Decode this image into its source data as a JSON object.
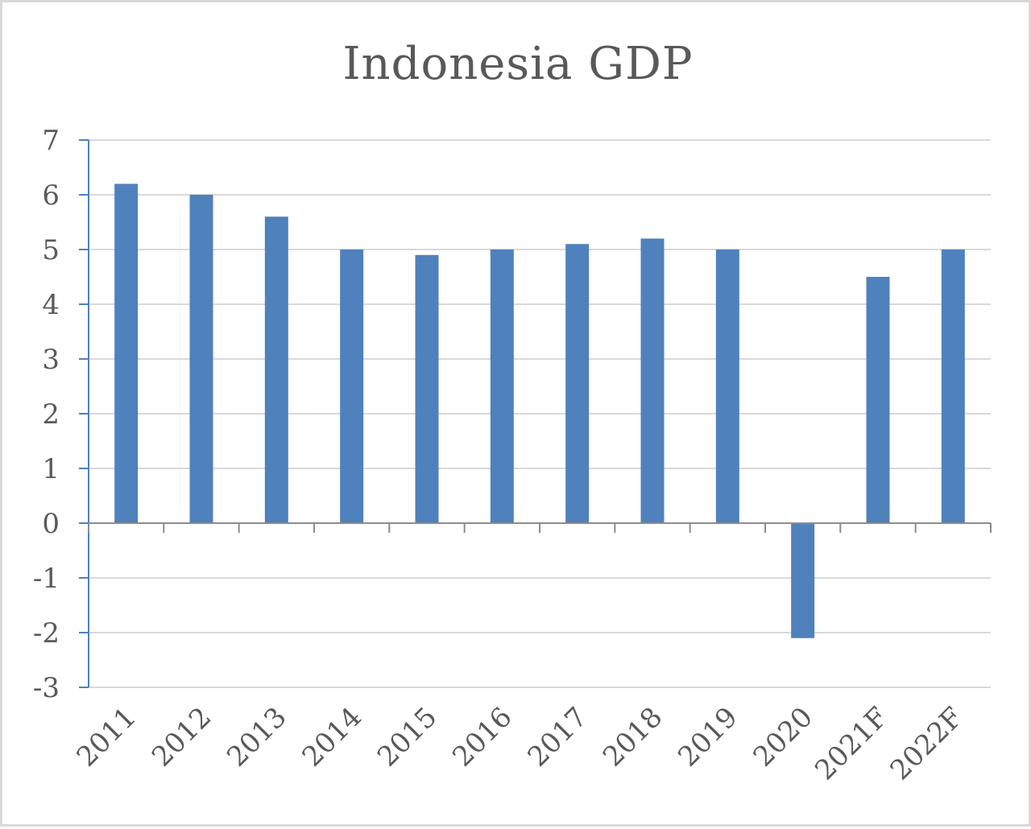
{
  "chart_data": {
    "type": "bar",
    "title": "Indonesia GDP",
    "xlabel": "",
    "ylabel": "",
    "categories": [
      "2011",
      "2012",
      "2013",
      "2014",
      "2015",
      "2016",
      "2017",
      "2018",
      "2019",
      "2020",
      "2021F",
      "2022F"
    ],
    "values": [
      6.2,
      6.0,
      5.6,
      5.0,
      4.9,
      5.0,
      5.1,
      5.2,
      5.0,
      -2.1,
      4.5,
      5.0
    ],
    "ylim": [
      -3,
      7
    ],
    "yticks": [
      "7",
      "6",
      "5",
      "4",
      "3",
      "2",
      "1",
      "0",
      "-1",
      "-2",
      "-3"
    ],
    "grid": true,
    "legend": "none",
    "colors": {
      "bar": "#4f81bd",
      "axis": "#4f81bd",
      "grid": "#d9d9d9",
      "text": "#595959"
    }
  }
}
